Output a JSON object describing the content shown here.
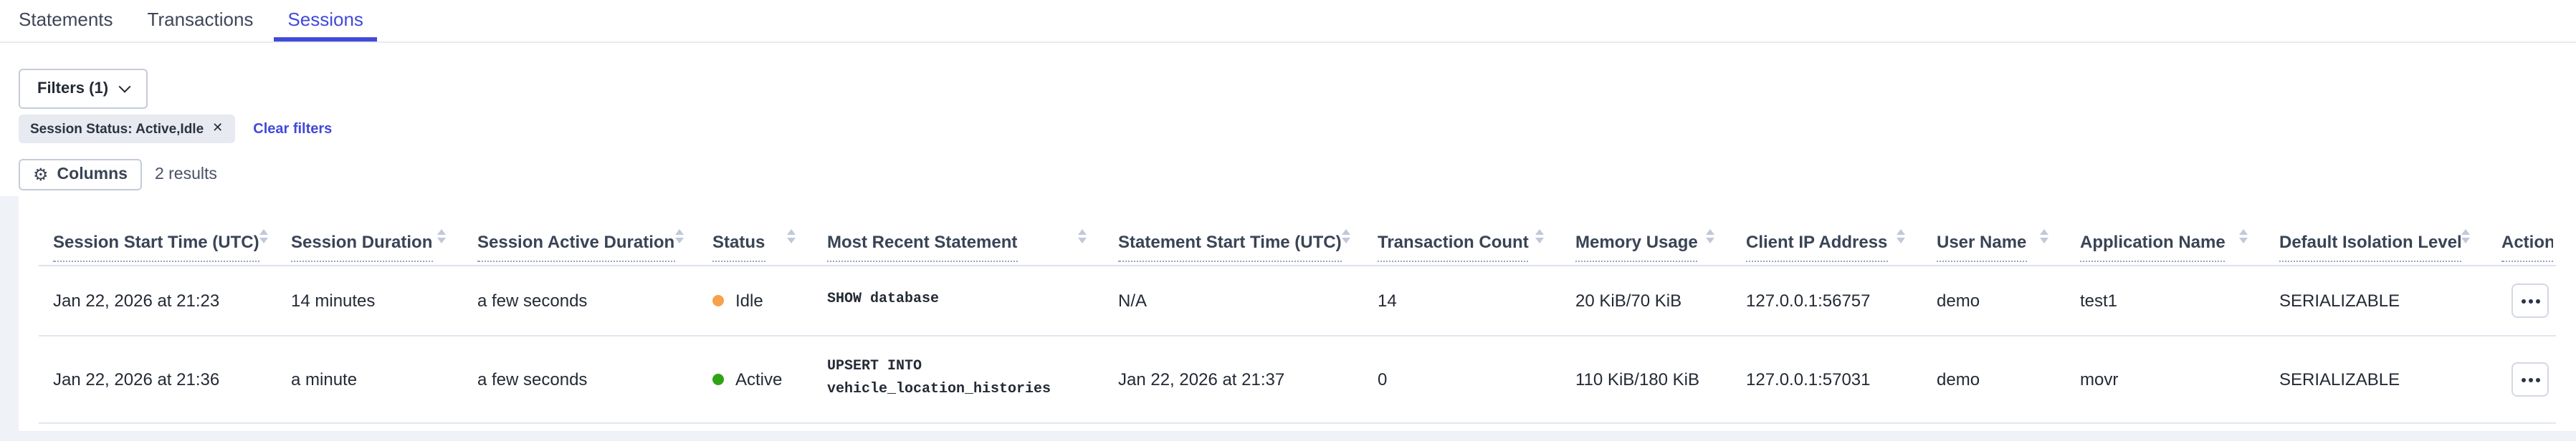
{
  "tabs": {
    "items": [
      {
        "label": "Statements",
        "active": false
      },
      {
        "label": "Transactions",
        "active": false
      },
      {
        "label": "Sessions",
        "active": true
      }
    ]
  },
  "filters": {
    "button_label": "Filters (1)",
    "chip_label": "Session Status: Active,Idle",
    "clear_label": "Clear filters"
  },
  "toolbar": {
    "columns_label": "Columns",
    "results_text": "2 results"
  },
  "table": {
    "columns": [
      {
        "label": "Session Start Time (UTC)",
        "sortable": true
      },
      {
        "label": "Session Duration",
        "sortable": true
      },
      {
        "label": "Session Active Duration",
        "sortable": true
      },
      {
        "label": "Status",
        "sortable": true
      },
      {
        "label": "Most Recent Statement",
        "sortable": true
      },
      {
        "label": "Statement Start Time (UTC)",
        "sortable": true
      },
      {
        "label": "Transaction Count",
        "sortable": true
      },
      {
        "label": "Memory Usage",
        "sortable": true
      },
      {
        "label": "Client IP Address",
        "sortable": true
      },
      {
        "label": "User Name",
        "sortable": true
      },
      {
        "label": "Application Name",
        "sortable": true
      },
      {
        "label": "Default Isolation Level",
        "sortable": true
      },
      {
        "label": "Actions",
        "sortable": false
      }
    ],
    "rows": [
      {
        "session_start_time": "Jan 22, 2026 at 21:23",
        "session_duration": "14 minutes",
        "session_active_duration": "a few seconds",
        "status": "Idle",
        "status_color": "#f8a14b",
        "statement_lines": [
          "SHOW database"
        ],
        "statement_start_time": "N/A",
        "transaction_count": "14",
        "memory_usage": "20 KiB/70 KiB",
        "client_ip": "127.0.0.1:56757",
        "user_name": "demo",
        "application_name": "test1",
        "default_isolation_level": "SERIALIZABLE"
      },
      {
        "session_start_time": "Jan 22, 2026 at 21:36",
        "session_duration": "a minute",
        "session_active_duration": "a few seconds",
        "status": "Active",
        "status_color": "#2ea415",
        "statement_lines": [
          "UPSERT INTO",
          "vehicle_location_histories"
        ],
        "statement_start_time": "Jan 22, 2026 at 21:37",
        "transaction_count": "0",
        "memory_usage": "110 KiB/180 KiB",
        "client_ip": "127.0.0.1:57031",
        "user_name": "demo",
        "application_name": "movr",
        "default_isolation_level": "SERIALIZABLE"
      }
    ]
  },
  "icons": {
    "gear_glyph": "⚙",
    "close_glyph": "✕"
  },
  "colors": {
    "accent": "#4149db",
    "idle_status": "#f8a14b",
    "active_status": "#2ea415",
    "header_text": "#394455",
    "body_text": "#242a35",
    "section_background": "#eff2f7"
  }
}
